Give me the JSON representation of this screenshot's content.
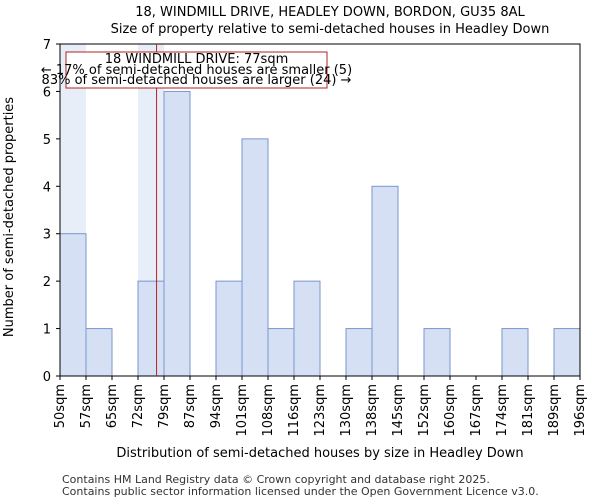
{
  "chart_data": {
    "type": "bar",
    "title": "18, WINDMILL DRIVE, HEADLEY DOWN, BORDON, GU35 8AL",
    "subtitle": "Size of property relative to semi-detached houses in Headley Down",
    "xlabel": "Distribution of semi-detached houses by size in Headley Down",
    "ylabel": "Number of semi-detached properties",
    "bin_edges": [
      50,
      57,
      65,
      72,
      79,
      87,
      94,
      101,
      108,
      116,
      123,
      130,
      138,
      145,
      152,
      160,
      167,
      174,
      181,
      189,
      196
    ],
    "tick_labels": [
      "50sqm",
      "57sqm",
      "65sqm",
      "72sqm",
      "79sqm",
      "87sqm",
      "94sqm",
      "101sqm",
      "108sqm",
      "116sqm",
      "123sqm",
      "130sqm",
      "138sqm",
      "145sqm",
      "152sqm",
      "160sqm",
      "167sqm",
      "174sqm",
      "181sqm",
      "189sqm",
      "196sqm"
    ],
    "values": [
      3,
      1,
      0,
      2,
      6,
      0,
      2,
      5,
      1,
      2,
      0,
      1,
      4,
      0,
      1,
      0,
      0,
      1,
      0,
      1
    ],
    "highlight": [
      true,
      false,
      false,
      true,
      false,
      false,
      false,
      false,
      false,
      false,
      false,
      false,
      false,
      false,
      false,
      false,
      false,
      false,
      false,
      false
    ],
    "ylim": [
      0,
      7
    ],
    "yticks": [
      0,
      1,
      2,
      3,
      4,
      5,
      6,
      7
    ],
    "marker_value": 77,
    "colors": {
      "bar_fill": "#d6e0f5",
      "bar_fill_highlight": "#e8eef8",
      "bar_stroke": "#7a96cc",
      "marker": "#b22222",
      "annot_border": "#b22222"
    },
    "annotation": {
      "line1": "18 WINDMILL DRIVE: 77sqm",
      "line2": "← 17% of semi-detached houses are smaller (5)",
      "line3": "83% of semi-detached houses are larger (24) →"
    }
  },
  "footer": {
    "line1": "Contains HM Land Registry data © Crown copyright and database right 2025.",
    "line2": "Contains public sector information licensed under the Open Government Licence v3.0."
  }
}
